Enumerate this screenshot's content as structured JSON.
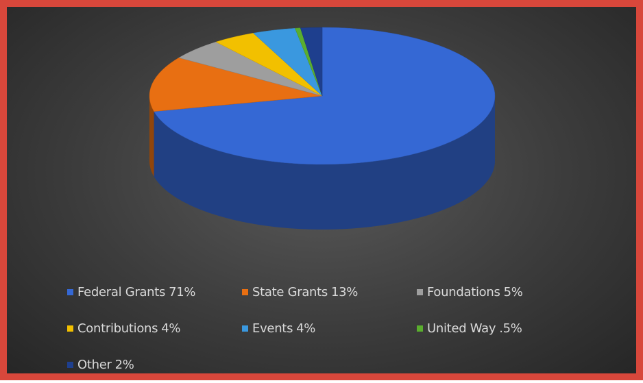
{
  "chart_data": {
    "type": "pie",
    "categories": [
      "Federal Grants",
      "State Grants",
      "Foundations",
      "Contributions",
      "Events",
      "United Way",
      "Other"
    ],
    "values": [
      71,
      13,
      5,
      4,
      4,
      0.5,
      2
    ],
    "value_labels": [
      "71%",
      "13%",
      "5%",
      "4%",
      "4%",
      ".5%",
      "2%"
    ],
    "colors": [
      "#3568d4",
      "#e86f12",
      "#9e9e9e",
      "#f2c000",
      "#3a98df",
      "#5aae2e",
      "#1e3f8e"
    ],
    "legend": "bottom"
  }
}
